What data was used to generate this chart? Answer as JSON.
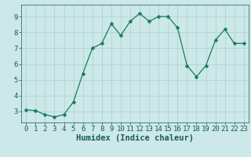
{
  "x": [
    0,
    1,
    2,
    3,
    4,
    5,
    6,
    7,
    8,
    9,
    10,
    11,
    12,
    13,
    14,
    15,
    16,
    17,
    18,
    19,
    20,
    21,
    22,
    23
  ],
  "y": [
    3.1,
    3.05,
    2.8,
    2.65,
    2.8,
    3.6,
    5.4,
    7.0,
    7.3,
    8.55,
    7.8,
    8.7,
    9.2,
    8.7,
    9.0,
    9.0,
    8.3,
    5.9,
    5.2,
    5.9,
    7.5,
    8.2,
    7.3,
    7.3
  ],
  "line_color": "#1a7a5e",
  "marker": "D",
  "marker_size": 2.5,
  "bg_color": "#cce8e8",
  "grid_color": "#b0d4d4",
  "xlabel": "Humidex (Indice chaleur)",
  "xlabel_fontsize": 7.5,
  "xlim": [
    -0.5,
    23.5
  ],
  "ylim": [
    2.3,
    9.75
  ],
  "yticks": [
    3,
    4,
    5,
    6,
    7,
    8,
    9
  ],
  "xticks": [
    0,
    1,
    2,
    3,
    4,
    5,
    6,
    7,
    8,
    9,
    10,
    11,
    12,
    13,
    14,
    15,
    16,
    17,
    18,
    19,
    20,
    21,
    22,
    23
  ],
  "tick_fontsize": 6.5,
  "axis_color": "#1a5a5a"
}
